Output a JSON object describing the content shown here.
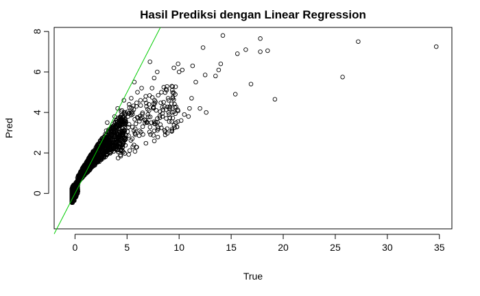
{
  "chart_data": {
    "type": "scatter",
    "title": "Hasil Prediksi dengan Linear Regression",
    "xlabel": "True",
    "ylabel": "Pred",
    "xlim": [
      -2,
      36.2
    ],
    "ylim": [
      -1.75,
      8.2
    ],
    "x_ticks": [
      0,
      5,
      10,
      15,
      20,
      25,
      30,
      35
    ],
    "y_ticks": [
      0,
      2,
      4,
      6,
      8
    ],
    "grid": false,
    "marker": "open-circle",
    "reference_line": {
      "slope": 1,
      "intercept": 0,
      "color": "#00cc00"
    },
    "series": [
      {
        "points": [
          [
            34.7,
            7.25
          ],
          [
            27.2,
            7.5
          ],
          [
            25.7,
            5.75
          ],
          [
            19.2,
            4.65
          ],
          [
            18.5,
            7.05
          ],
          [
            17.8,
            7.0
          ],
          [
            17.8,
            7.65
          ],
          [
            16.9,
            5.4
          ],
          [
            16.4,
            7.1
          ],
          [
            15.6,
            6.9
          ],
          [
            15.4,
            4.9
          ],
          [
            14.2,
            7.8
          ],
          [
            14.0,
            6.4
          ],
          [
            13.8,
            6.1
          ],
          [
            13.5,
            5.8
          ],
          [
            12.3,
            7.2
          ],
          [
            12.5,
            5.85
          ],
          [
            12.6,
            4.0
          ],
          [
            12.0,
            4.2
          ],
          [
            11.6,
            5.5
          ],
          [
            11.3,
            6.3
          ],
          [
            11.2,
            4.7
          ],
          [
            11.0,
            4.2
          ],
          [
            10.9,
            3.8
          ],
          [
            10.5,
            3.9
          ],
          [
            10.2,
            3.6
          ],
          [
            10.0,
            6.0
          ],
          [
            9.9,
            6.4
          ],
          [
            10.3,
            6.1
          ],
          [
            9.5,
            6.2
          ],
          [
            9.3,
            5.3
          ],
          [
            9.0,
            4.6
          ],
          [
            8.6,
            4.3
          ],
          [
            8.4,
            3.8
          ],
          [
            8.2,
            3.4
          ],
          [
            8.0,
            3.2
          ],
          [
            7.8,
            4.1
          ],
          [
            8.8,
            5.1
          ],
          [
            8.3,
            5.0
          ],
          [
            7.9,
            6.0
          ],
          [
            7.6,
            5.7
          ],
          [
            7.2,
            6.5
          ],
          [
            7.4,
            5.2
          ],
          [
            7.1,
            4.4
          ],
          [
            7.0,
            3.9
          ],
          [
            6.8,
            3.6
          ],
          [
            6.5,
            3.3
          ],
          [
            6.2,
            3.1
          ],
          [
            5.8,
            2.9
          ],
          [
            5.5,
            2.7
          ],
          [
            6.8,
            4.8
          ],
          [
            6.4,
            5.2
          ],
          [
            6.3,
            4.6
          ],
          [
            6.0,
            5.0
          ],
          [
            5.9,
            4.3
          ],
          [
            5.7,
            5.5
          ],
          [
            5.4,
            4.7
          ],
          [
            5.2,
            4.4
          ],
          [
            5.1,
            3.8
          ],
          [
            4.9,
            3.5
          ],
          [
            4.7,
            4.6
          ],
          [
            4.5,
            4.1
          ],
          [
            4.4,
            3.6
          ],
          [
            4.2,
            3.2
          ],
          [
            4.0,
            2.9
          ],
          [
            4.1,
            4.2
          ],
          [
            3.8,
            3.8
          ],
          [
            3.6,
            3.4
          ],
          [
            3.5,
            3.0
          ],
          [
            3.3,
            2.7
          ],
          [
            4.6,
            2.5
          ],
          [
            4.3,
            2.4
          ],
          [
            3.9,
            2.3
          ],
          [
            3.1,
            3.5
          ],
          [
            3.0,
            3.1
          ],
          [
            2.8,
            2.8
          ],
          [
            2.6,
            2.6
          ],
          [
            2.4,
            2.4
          ],
          [
            2.2,
            2.2
          ],
          [
            2.0,
            2.0
          ]
        ]
      }
    ]
  }
}
